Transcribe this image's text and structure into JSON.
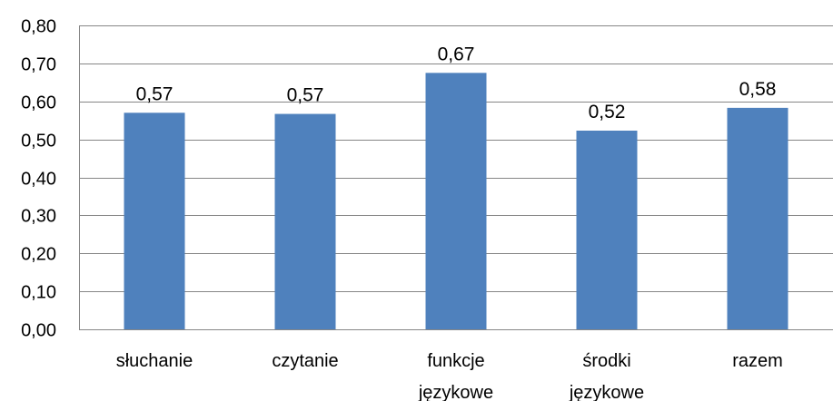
{
  "chart_data": {
    "type": "bar",
    "categories": [
      [
        "słuchanie"
      ],
      [
        "czytanie"
      ],
      [
        "funkcje",
        "językowe"
      ],
      [
        "środki",
        "językowe"
      ],
      [
        "razem"
      ]
    ],
    "values": [
      0.57,
      0.567,
      0.675,
      0.523,
      0.583
    ],
    "data_labels": [
      "0,57",
      "0,57",
      "0,67",
      "0,52",
      "0,58"
    ],
    "y_ticks": [
      "0,00",
      "0,10",
      "0,20",
      "0,30",
      "0,40",
      "0,50",
      "0,60",
      "0,70",
      "0,80"
    ],
    "ylim": [
      0,
      0.8
    ],
    "grid": true,
    "legend": "none",
    "title": "",
    "xlabel": "",
    "ylabel": "",
    "bar_color": "#4f81bd",
    "grid_color": "#868686"
  }
}
